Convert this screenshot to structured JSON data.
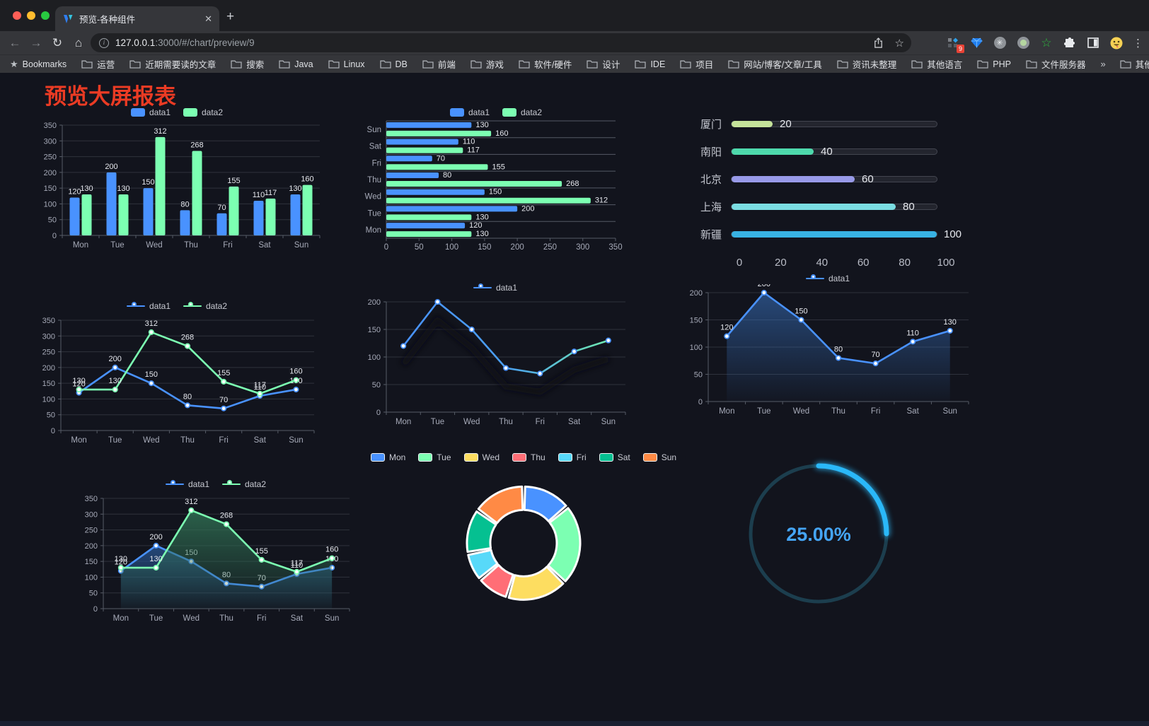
{
  "browser": {
    "tab": {
      "title": "预览-各种组件",
      "close_glyph": "✕"
    },
    "new_tab_glyph": "+",
    "nav": {
      "back_glyph": "←",
      "forward_glyph": "→",
      "reload_glyph": "↻",
      "home_glyph": "⌂",
      "info_glyph": "i"
    },
    "url": {
      "host": "127.0.0.1",
      "rest": ":3000/#/chart/preview/9"
    },
    "actions": {
      "star_glyph": "☆",
      "kebab_glyph": "⋮",
      "extension_badge": "9",
      "snowflake_glyph": "✳",
      "green_star_glyph": "☆"
    },
    "bookmarks_bar": {
      "star_glyph": "★",
      "label": "Bookmarks",
      "items": [
        "运营",
        "近期需要读的文章",
        "搜索",
        "Java",
        "Linux",
        "DB",
        "前端",
        "游戏",
        "软件/硬件",
        "设计",
        "IDE",
        "项目",
        "网站/博客/文章/工具",
        "资讯未整理",
        "其他语言",
        "PHP",
        "文件服务器"
      ],
      "overflow_glyph": "»",
      "other_bookmarks": "其他书签"
    }
  },
  "page": {
    "title": "预览大屏报表",
    "title_color": "#ea3b24"
  },
  "chart_data": [
    {
      "id": "grouped-bar",
      "type": "bar",
      "categories": [
        "Mon",
        "Tue",
        "Wed",
        "Thu",
        "Fri",
        "Sat",
        "Sun"
      ],
      "series": [
        {
          "name": "data1",
          "color": "#4992ff",
          "values": [
            120,
            200,
            150,
            80,
            70,
            110,
            130
          ]
        },
        {
          "name": "data2",
          "color": "#7cffb2",
          "values": [
            130,
            130,
            312,
            268,
            155,
            117,
            160
          ]
        }
      ],
      "ylim": [
        0,
        350
      ],
      "yticks": [
        0,
        50,
        100,
        150,
        200,
        250,
        300,
        350
      ],
      "legend": true,
      "labels": true
    },
    {
      "id": "horizontal-bar",
      "type": "bar",
      "horizontal": true,
      "inverse": true,
      "categories": [
        "Mon",
        "Tue",
        "Wed",
        "Thu",
        "Fri",
        "Sat",
        "Sun"
      ],
      "series": [
        {
          "name": "data1",
          "color": "#4992ff",
          "values": [
            120,
            200,
            150,
            80,
            70,
            110,
            130
          ]
        },
        {
          "name": "data2",
          "color": "#7cffb2",
          "values": [
            130,
            130,
            312,
            268,
            155,
            117,
            160
          ]
        }
      ],
      "xlim": [
        0,
        350
      ],
      "xticks": [
        0,
        50,
        100,
        150,
        200,
        250,
        300,
        350
      ],
      "legend": true,
      "labels": true
    },
    {
      "id": "progress-list",
      "type": "progress",
      "max": 100,
      "items": [
        {
          "label": "厦门",
          "value": 20,
          "color": "#c5e39a"
        },
        {
          "label": "南阳",
          "value": 40,
          "color": "#4ed9ac"
        },
        {
          "label": "北京",
          "value": 60,
          "color": "#989ae8"
        },
        {
          "label": "上海",
          "value": 80,
          "color": "#7adde2"
        },
        {
          "label": "新疆",
          "value": 100,
          "color": "#38b2e3"
        }
      ],
      "xticks": [
        0,
        20,
        40,
        60,
        80,
        100
      ]
    },
    {
      "id": "line-two-series",
      "type": "line",
      "categories": [
        "Mon",
        "Tue",
        "Wed",
        "Thu",
        "Fri",
        "Sat",
        "Sun"
      ],
      "series": [
        {
          "name": "data1",
          "color": "#4992ff",
          "values": [
            120,
            200,
            150,
            80,
            70,
            110,
            130
          ]
        },
        {
          "name": "data2",
          "color": "#7cffb2",
          "values": [
            130,
            130,
            312,
            268,
            155,
            117,
            160
          ]
        }
      ],
      "ylim": [
        0,
        350
      ],
      "yticks": [
        0,
        50,
        100,
        150,
        200,
        250,
        300,
        350
      ],
      "legend": true,
      "labels": true
    },
    {
      "id": "line-gradient",
      "type": "line",
      "categories": [
        "Mon",
        "Tue",
        "Wed",
        "Thu",
        "Fri",
        "Sat",
        "Sun"
      ],
      "series": [
        {
          "name": "data1",
          "color": "#4992ff",
          "gradient": [
            "#4992ff",
            "#4a9ff0",
            "#6fe9b0"
          ],
          "values": [
            120,
            200,
            150,
            80,
            70,
            110,
            130
          ]
        }
      ],
      "ylim": [
        0,
        200
      ],
      "yticks": [
        0,
        50,
        100,
        150,
        200
      ],
      "legend": true,
      "labels": false,
      "shadow": true
    },
    {
      "id": "area-single",
      "type": "line",
      "categories": [
        "Mon",
        "Tue",
        "Wed",
        "Thu",
        "Fri",
        "Sat",
        "Sun"
      ],
      "series": [
        {
          "name": "data1",
          "color": "#4992ff",
          "area": [
            "rgba(57,117,198,0.55)",
            "rgba(57,117,198,0.03)"
          ],
          "values": [
            120,
            200,
            150,
            80,
            70,
            110,
            130
          ]
        }
      ],
      "ylim": [
        0,
        200
      ],
      "yticks": [
        0,
        50,
        100,
        150,
        200
      ],
      "legend": true,
      "labels": true
    },
    {
      "id": "area-two-series",
      "type": "line",
      "categories": [
        "Mon",
        "Tue",
        "Wed",
        "Thu",
        "Fri",
        "Sat",
        "Sun"
      ],
      "series": [
        {
          "name": "data1",
          "color": "#4992ff",
          "area": [
            "rgba(39,81,138,0.85)",
            "rgba(39,81,138,0.05)"
          ],
          "values": [
            120,
            200,
            150,
            80,
            70,
            110,
            130
          ]
        },
        {
          "name": "data2",
          "color": "#7cffb2",
          "area": [
            "rgba(47,110,82,0.85)",
            "rgba(47,110,82,0.05)"
          ],
          "values": [
            130,
            130,
            312,
            268,
            155,
            117,
            160
          ]
        }
      ],
      "ylim": [
        0,
        350
      ],
      "yticks": [
        0,
        50,
        100,
        150,
        200,
        250,
        300,
        350
      ],
      "legend": true,
      "labels": true
    },
    {
      "id": "donut-pie",
      "type": "pie",
      "labels": [
        "Mon",
        "Tue",
        "Wed",
        "Thu",
        "Fri",
        "Sat",
        "Sun"
      ],
      "values": [
        120,
        200,
        150,
        80,
        70,
        110,
        130
      ],
      "colors": [
        "#4992ff",
        "#7cffb2",
        "#fddd60",
        "#ff6e76",
        "#58d9f9",
        "#05c091",
        "#ff8a45"
      ],
      "legend": true
    },
    {
      "id": "ring-gauge",
      "type": "gauge",
      "value": 25,
      "display": "25.00%",
      "color": "#2ab8f8",
      "track_color": "#1c3e4e",
      "text_color": "#45a5f5"
    }
  ]
}
